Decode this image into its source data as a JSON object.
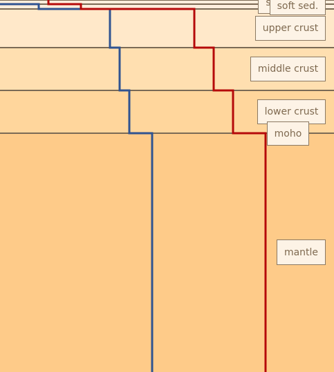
{
  "layers": [
    {
      "id": "water",
      "label": "",
      "color": "#ffeedd"
    },
    {
      "id": "hard-sediment",
      "label": "s",
      "color": "#ffeedd"
    },
    {
      "id": "soft-sediment",
      "label": "soft sed.",
      "color": "#ffeedd"
    },
    {
      "id": "upper-crust",
      "label": "upper crust",
      "color": "#ffe8c9"
    },
    {
      "id": "middle-crust",
      "label": "middle crust",
      "color": "#ffdfb0"
    },
    {
      "id": "lower-crust",
      "label": "lower crust",
      "color": "#ffd69c"
    },
    {
      "id": "mantle",
      "label": "mantle",
      "color": "#fecb89"
    }
  ],
  "interfaces": [
    {
      "id": "moho",
      "label": "moho"
    }
  ],
  "profiles": [
    {
      "id": "blue-velocity-profile",
      "color": "#2f5391"
    },
    {
      "id": "red-velocity-profile",
      "color": "#b50a0a"
    }
  ],
  "boundary_color": "#7a6a55"
}
